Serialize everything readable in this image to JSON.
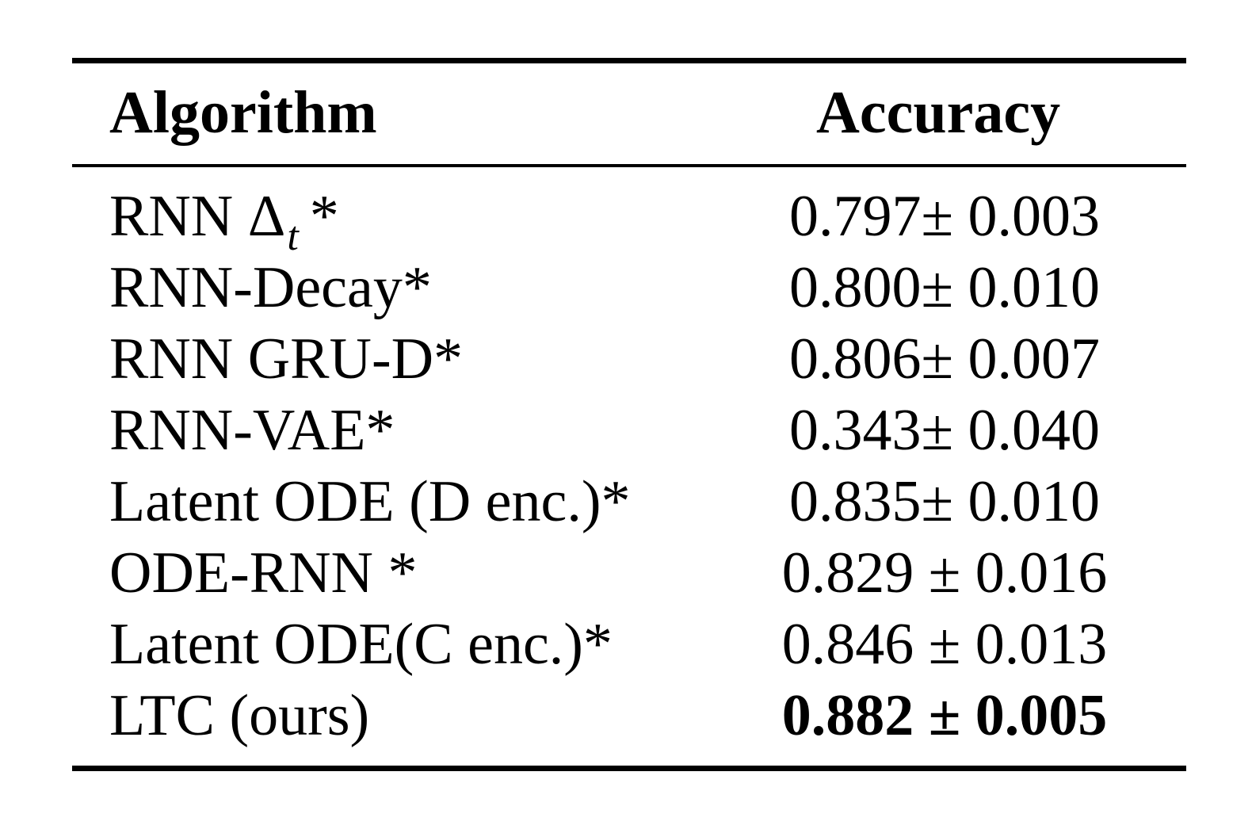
{
  "table": {
    "headers": {
      "algorithm": "Algorithm",
      "accuracy": "Accuracy"
    },
    "rows": [
      {
        "algorithm": "RNN Δ",
        "subscript": "t",
        "suffix": "*",
        "accuracy": "0.797± 0.003",
        "bold": false
      },
      {
        "algorithm": "RNN-Decay*",
        "accuracy": "0.800± 0.010",
        "bold": false
      },
      {
        "algorithm": "RNN GRU-D*",
        "accuracy": "0.806± 0.007",
        "bold": false
      },
      {
        "algorithm": "RNN-VAE*",
        "accuracy": "0.343± 0.040",
        "bold": false
      },
      {
        "algorithm": "Latent ODE (D enc.)*",
        "accuracy": "0.835± 0.010",
        "bold": false
      },
      {
        "algorithm": "ODE-RNN *",
        "accuracy": "0.829 ± 0.016",
        "bold": false
      },
      {
        "algorithm": "Latent ODE(C enc.)*",
        "accuracy": "0.846 ± 0.013",
        "bold": false
      },
      {
        "algorithm": "LTC (ours)",
        "accuracy": "0.882 ± 0.005",
        "bold": true
      }
    ]
  }
}
